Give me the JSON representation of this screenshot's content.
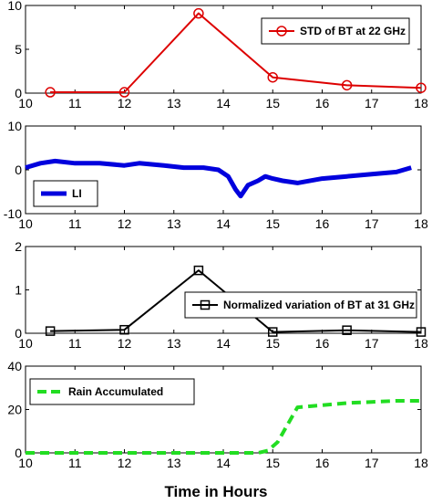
{
  "colors": {
    "std": "#dd0000",
    "li": "#0000dd",
    "norm": "#000000",
    "rain": "#22dd22"
  },
  "chart_data": [
    {
      "type": "line",
      "xlim": [
        10,
        18
      ],
      "ylim": [
        0,
        10
      ],
      "xticks": [
        10,
        11,
        12,
        13,
        14,
        15,
        16,
        17,
        18
      ],
      "yticks": [
        0,
        5,
        10
      ],
      "series": [
        {
          "name": "STD of BT at 22 GHz",
          "marker": "circle",
          "x": [
            10.5,
            12,
            13.5,
            15,
            16.5,
            18
          ],
          "y": [
            0.1,
            0.1,
            9.1,
            1.8,
            0.9,
            0.6
          ]
        }
      ],
      "legend": "top-right"
    },
    {
      "type": "line",
      "xlim": [
        10,
        18
      ],
      "ylim": [
        -10,
        10
      ],
      "xticks": [
        10,
        11,
        12,
        13,
        14,
        15,
        16,
        17,
        18
      ],
      "yticks": [
        -10,
        0,
        10
      ],
      "series": [
        {
          "name": "LI",
          "x": [
            10,
            10.3,
            10.6,
            11,
            11.5,
            12,
            12.3,
            12.8,
            13.2,
            13.6,
            13.9,
            14.1,
            14.25,
            14.35,
            14.5,
            14.7,
            14.85,
            15,
            15.2,
            15.5,
            16,
            16.5,
            17,
            17.5,
            17.8
          ],
          "y": [
            0.5,
            1.5,
            2,
            1.5,
            1.5,
            1,
            1.5,
            1,
            0.5,
            0.5,
            0,
            -1.5,
            -4.5,
            -6,
            -3.5,
            -2.5,
            -1.5,
            -2,
            -2.5,
            -3,
            -2,
            -1.5,
            -1,
            -0.5,
            0.5
          ]
        }
      ],
      "legend": "bottom-left"
    },
    {
      "type": "line",
      "xlim": [
        10,
        18
      ],
      "ylim": [
        0,
        2
      ],
      "xticks": [
        10,
        11,
        12,
        13,
        14,
        15,
        16,
        17,
        18
      ],
      "yticks": [
        0,
        1,
        2
      ],
      "series": [
        {
          "name": "Normalized variation of BT at 31 GHz",
          "marker": "square",
          "x": [
            10.5,
            12,
            13.5,
            15,
            16.5,
            18
          ],
          "y": [
            0.05,
            0.08,
            1.45,
            0.03,
            0.07,
            0.03
          ]
        }
      ],
      "legend": "right"
    },
    {
      "type": "line",
      "xlim": [
        10,
        18
      ],
      "ylim": [
        0,
        40
      ],
      "xticks": [
        10,
        11,
        12,
        13,
        14,
        15,
        16,
        17,
        18
      ],
      "yticks": [
        0,
        20,
        40
      ],
      "xlabel": "Time in Hours",
      "series": [
        {
          "name": "Rain Accumulated",
          "style": "dashed",
          "x": [
            10,
            14.7,
            14.9,
            15.1,
            15.3,
            15.5,
            16,
            16.5,
            17,
            17.5,
            18
          ],
          "y": [
            0,
            0,
            1,
            5,
            13,
            21,
            22,
            23,
            23.5,
            24,
            24
          ]
        }
      ],
      "legend": "top-left"
    }
  ]
}
